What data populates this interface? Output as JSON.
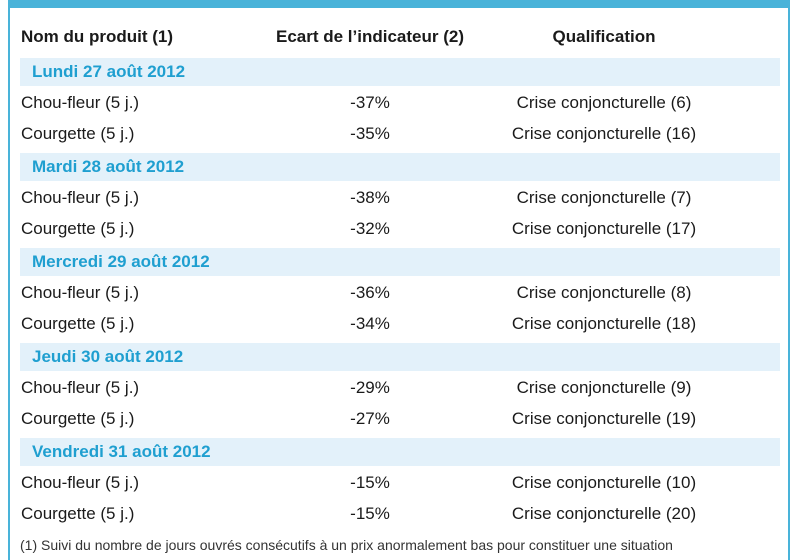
{
  "table": {
    "columns": [
      "Nom du produit (1)",
      "Ecart de l’indicateur (2)",
      "Qualification"
    ],
    "groups": [
      {
        "date": "Lundi 27 août 2012",
        "rows": [
          {
            "produit": "Chou-fleur (5 j.)",
            "ecart": "-37%",
            "qualification": "Crise conjoncturelle (6)"
          },
          {
            "produit": "Courgette (5 j.)",
            "ecart": "-35%",
            "qualification": "Crise conjoncturelle (16)"
          }
        ]
      },
      {
        "date": "Mardi 28 août 2012",
        "rows": [
          {
            "produit": "Chou-fleur (5 j.)",
            "ecart": "-38%",
            "qualification": "Crise conjoncturelle (7)"
          },
          {
            "produit": "Courgette (5 j.)",
            "ecart": "-32%",
            "qualification": "Crise conjoncturelle (17)"
          }
        ]
      },
      {
        "date": "Mercredi 29 août 2012",
        "rows": [
          {
            "produit": "Chou-fleur (5 j.)",
            "ecart": "-36%",
            "qualification": "Crise conjoncturelle (8)"
          },
          {
            "produit": "Courgette (5 j.)",
            "ecart": "-34%",
            "qualification": "Crise conjoncturelle (18)"
          }
        ]
      },
      {
        "date": "Jeudi 30 août 2012",
        "rows": [
          {
            "produit": "Chou-fleur (5 j.)",
            "ecart": "-29%",
            "qualification": "Crise conjoncturelle (9)"
          },
          {
            "produit": "Courgette (5 j.)",
            "ecart": "-27%",
            "qualification": "Crise conjoncturelle (19)"
          }
        ]
      },
      {
        "date": "Vendredi 31 août 2012",
        "rows": [
          {
            "produit": "Chou-fleur (5 j.)",
            "ecart": "-15%",
            "qualification": "Crise conjoncturelle (10)"
          },
          {
            "produit": "Courgette (5 j.)",
            "ecart": "-15%",
            "qualification": "Crise conjoncturelle (20)"
          }
        ]
      }
    ]
  },
  "footnote": "(1) Suivi du nombre de jours ouvrés consécutifs à un prix anormalement bas pour constituer une situation",
  "colors": {
    "accent": "#49b3d9",
    "date_text": "#1f9fd0",
    "date_band": "#e3f1fa"
  }
}
